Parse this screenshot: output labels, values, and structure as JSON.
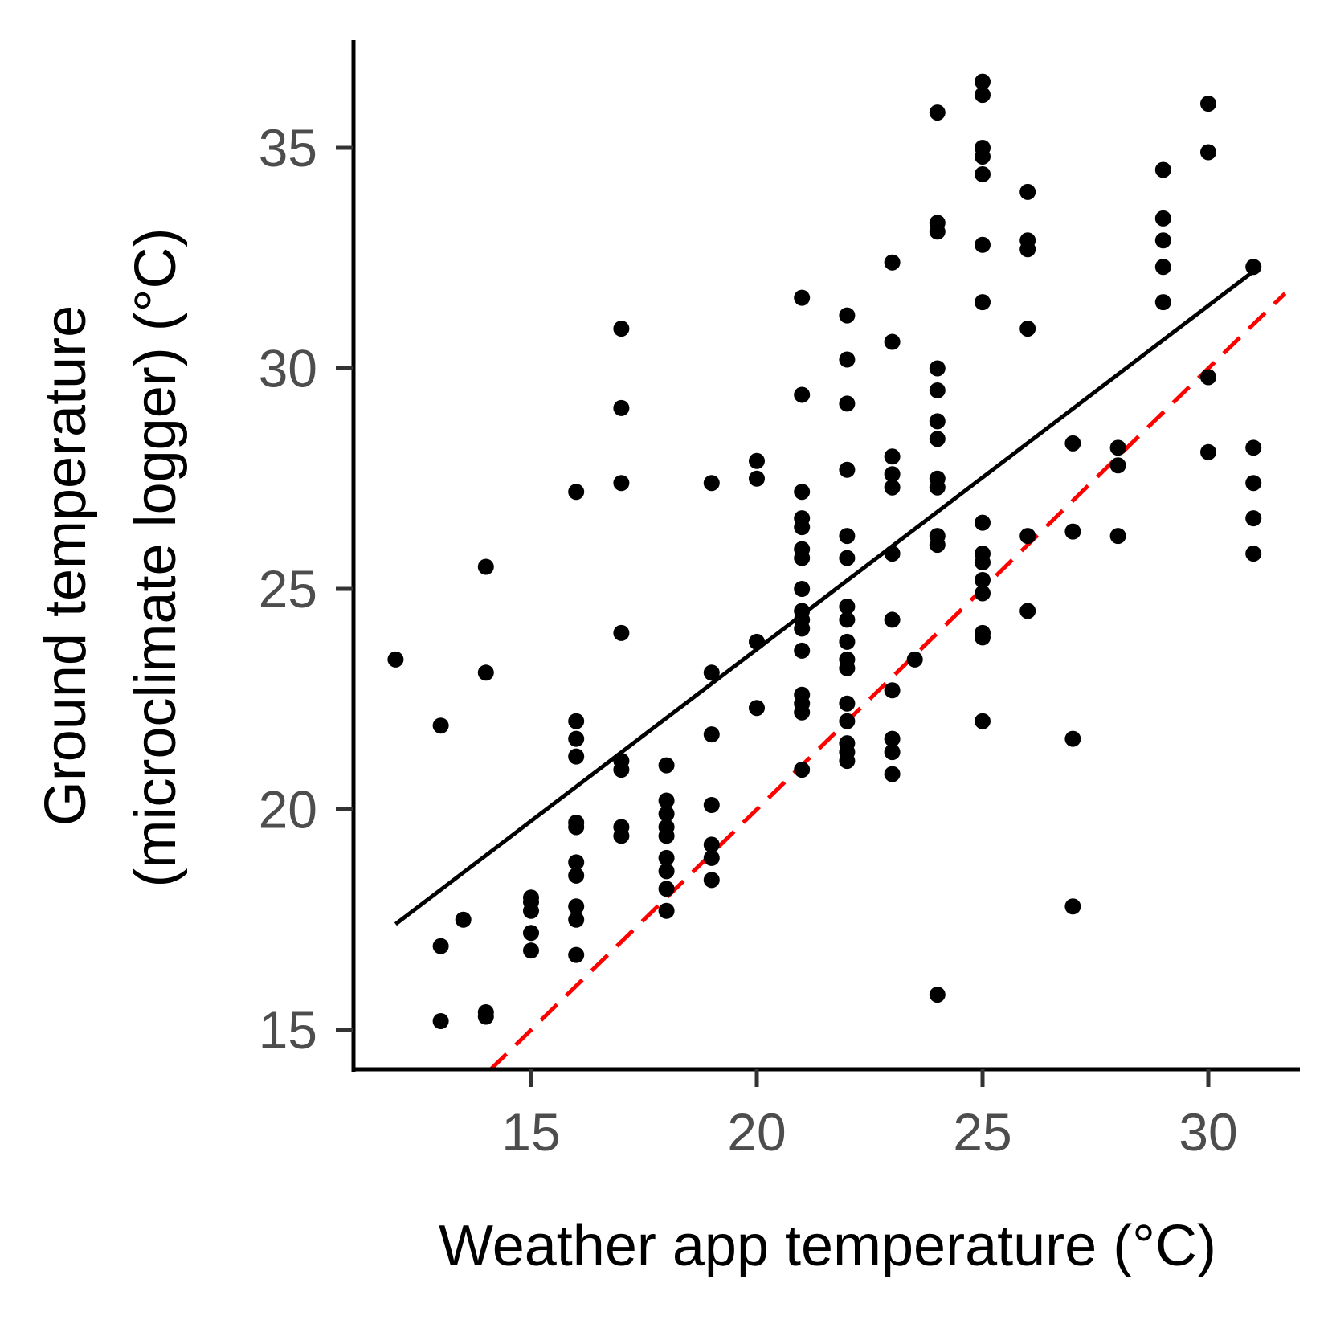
{
  "chart_data": {
    "type": "scatter",
    "xlabel": "Weather app temperature (°C)",
    "ylabel_lines": [
      "Ground temperature",
      "(microclimate logger) (°C)"
    ],
    "xlim": [
      11.0,
      32.0
    ],
    "ylim": [
      14.2,
      37.5
    ],
    "x_ticks": [
      15,
      20,
      25,
      30
    ],
    "y_ticks": [
      15,
      20,
      25,
      30,
      35
    ],
    "grid": false,
    "legend": "none",
    "colors": {
      "points": "#000000",
      "fit_line": "#000000",
      "identity_line": "#ff0000",
      "axis": "#000000",
      "tick_text": "#4d4d4d"
    },
    "fit_line": {
      "style": "solid",
      "x": [
        12,
        31
      ],
      "y": [
        17.4,
        32.2
      ]
    },
    "identity_line": {
      "style": "dashed",
      "x": [
        14.1,
        31.7
      ],
      "y": [
        14.1,
        31.7
      ]
    },
    "points": [
      [
        12,
        23.4
      ],
      [
        13,
        21.9
      ],
      [
        13,
        16.9
      ],
      [
        13,
        15.2
      ],
      [
        13.5,
        17.5
      ],
      [
        14,
        25.5
      ],
      [
        14,
        23.1
      ],
      [
        14,
        15.4
      ],
      [
        14,
        15.3
      ],
      [
        15,
        18.0
      ],
      [
        15,
        17.9
      ],
      [
        15,
        17.7
      ],
      [
        15,
        17.2
      ],
      [
        15,
        16.8
      ],
      [
        16,
        27.2
      ],
      [
        16,
        22.0
      ],
      [
        16,
        21.6
      ],
      [
        16,
        21.2
      ],
      [
        16,
        19.7
      ],
      [
        16,
        19.6
      ],
      [
        16,
        18.8
      ],
      [
        16,
        18.5
      ],
      [
        16,
        17.8
      ],
      [
        16,
        17.5
      ],
      [
        16,
        16.7
      ],
      [
        17,
        30.9
      ],
      [
        17,
        29.1
      ],
      [
        17,
        27.4
      ],
      [
        17,
        24.0
      ],
      [
        17,
        21.1
      ],
      [
        17,
        20.9
      ],
      [
        17,
        19.6
      ],
      [
        17,
        19.4
      ],
      [
        18,
        21.0
      ],
      [
        18,
        20.2
      ],
      [
        18,
        19.9
      ],
      [
        18,
        19.6
      ],
      [
        18,
        19.4
      ],
      [
        18,
        18.9
      ],
      [
        18,
        18.6
      ],
      [
        18,
        18.2
      ],
      [
        18,
        17.7
      ],
      [
        19,
        27.4
      ],
      [
        19,
        23.1
      ],
      [
        19,
        21.7
      ],
      [
        19,
        20.1
      ],
      [
        19,
        19.2
      ],
      [
        19,
        18.9
      ],
      [
        19,
        18.4
      ],
      [
        20,
        27.9
      ],
      [
        20,
        27.5
      ],
      [
        20,
        23.8
      ],
      [
        20,
        22.3
      ],
      [
        21,
        31.6
      ],
      [
        21,
        29.4
      ],
      [
        21,
        27.2
      ],
      [
        21,
        26.6
      ],
      [
        21,
        26.4
      ],
      [
        21,
        25.9
      ],
      [
        21,
        25.7
      ],
      [
        21,
        25.0
      ],
      [
        21,
        24.5
      ],
      [
        21,
        24.3
      ],
      [
        21,
        24.1
      ],
      [
        21,
        23.6
      ],
      [
        21,
        22.6
      ],
      [
        21,
        22.4
      ],
      [
        21,
        22.2
      ],
      [
        21,
        20.9
      ],
      [
        22,
        31.2
      ],
      [
        22,
        30.2
      ],
      [
        22,
        29.2
      ],
      [
        22,
        27.7
      ],
      [
        22,
        26.2
      ],
      [
        22,
        25.7
      ],
      [
        22,
        24.6
      ],
      [
        22,
        24.3
      ],
      [
        22,
        23.8
      ],
      [
        22,
        23.4
      ],
      [
        22,
        23.2
      ],
      [
        22,
        22.4
      ],
      [
        22,
        22.0
      ],
      [
        22,
        21.5
      ],
      [
        22,
        21.3
      ],
      [
        22,
        21.1
      ],
      [
        23,
        32.4
      ],
      [
        23,
        30.6
      ],
      [
        23,
        28.0
      ],
      [
        23,
        27.6
      ],
      [
        23,
        27.3
      ],
      [
        23,
        25.8
      ],
      [
        23,
        24.3
      ],
      [
        23,
        22.7
      ],
      [
        23,
        21.6
      ],
      [
        23,
        21.3
      ],
      [
        23,
        20.8
      ],
      [
        23.5,
        23.4
      ],
      [
        24,
        35.8
      ],
      [
        24,
        33.3
      ],
      [
        24,
        33.1
      ],
      [
        24,
        30.0
      ],
      [
        24,
        29.5
      ],
      [
        24,
        28.8
      ],
      [
        24,
        28.4
      ],
      [
        24,
        27.5
      ],
      [
        24,
        27.3
      ],
      [
        24,
        26.2
      ],
      [
        24,
        26.0
      ],
      [
        24,
        15.8
      ],
      [
        25,
        36.5
      ],
      [
        25,
        36.2
      ],
      [
        25,
        35.0
      ],
      [
        25,
        34.8
      ],
      [
        25,
        34.4
      ],
      [
        25,
        32.8
      ],
      [
        25,
        31.5
      ],
      [
        25,
        26.5
      ],
      [
        25,
        25.8
      ],
      [
        25,
        25.6
      ],
      [
        25,
        25.2
      ],
      [
        25,
        24.9
      ],
      [
        25,
        24.0
      ],
      [
        25,
        23.9
      ],
      [
        25,
        22.0
      ],
      [
        26,
        34.0
      ],
      [
        26,
        32.9
      ],
      [
        26,
        32.7
      ],
      [
        26,
        30.9
      ],
      [
        26,
        26.2
      ],
      [
        26,
        24.5
      ],
      [
        27,
        28.3
      ],
      [
        27,
        26.3
      ],
      [
        27,
        21.6
      ],
      [
        27,
        17.8
      ],
      [
        28,
        28.2
      ],
      [
        28,
        27.8
      ],
      [
        28,
        26.2
      ],
      [
        29,
        34.5
      ],
      [
        29,
        33.4
      ],
      [
        29,
        32.9
      ],
      [
        29,
        32.3
      ],
      [
        29,
        31.5
      ],
      [
        30,
        36.0
      ],
      [
        30,
        34.9
      ],
      [
        30,
        29.8
      ],
      [
        30,
        28.1
      ],
      [
        31,
        32.3
      ],
      [
        31,
        28.2
      ],
      [
        31,
        27.4
      ],
      [
        31,
        26.6
      ],
      [
        31,
        25.8
      ]
    ]
  }
}
